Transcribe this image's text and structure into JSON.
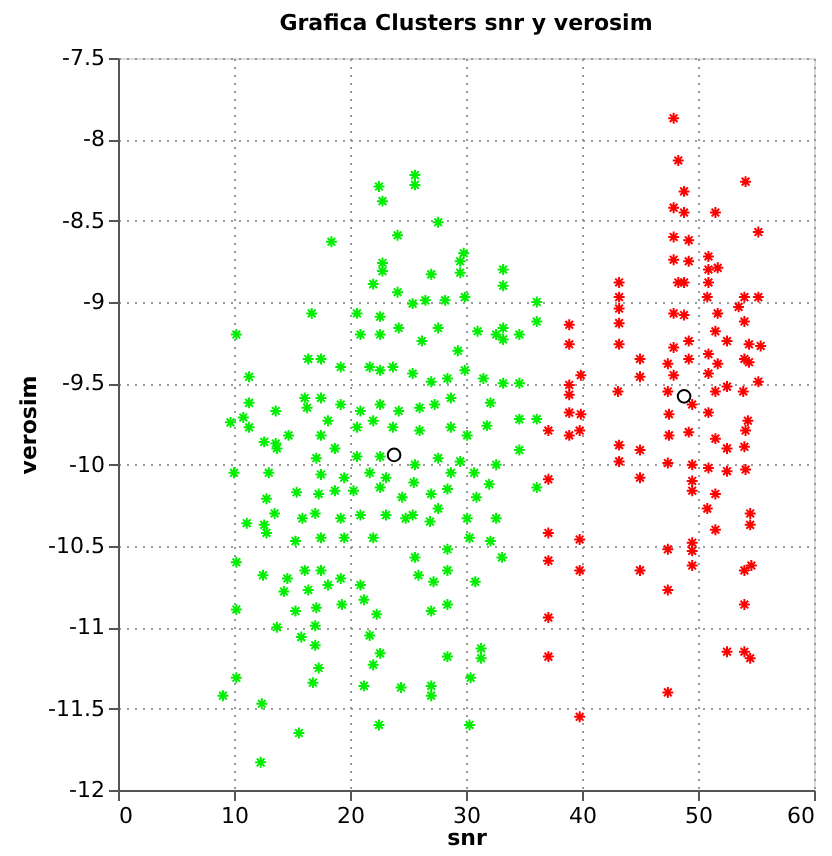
{
  "chart_data": {
    "type": "scatter",
    "title": "Grafica Clusters snr y verosim",
    "xlabel": "snr",
    "ylabel": "verosim",
    "xlim": [
      0,
      60
    ],
    "xticks": [
      0,
      10,
      20,
      30,
      40,
      50,
      60
    ],
    "ylim": [
      -12,
      -7.5
    ],
    "yticks": [
      -12,
      -11.5,
      -11,
      -10.5,
      -10,
      -9.5,
      -9,
      -8.5,
      -8,
      -7.5
    ],
    "grid": true,
    "series": [
      {
        "color": "#00ee00",
        "marker": "cross",
        "x": [
          12.3,
          15.6,
          22.5,
          30.3,
          9.05,
          10.2,
          12.4,
          16.8,
          21.2,
          24.4,
          27.0,
          27.0,
          30.4,
          28.4,
          31.3,
          31.3,
          17.3,
          22.0,
          22.6,
          17.0,
          15.8,
          13.7,
          17.0,
          21.7,
          10.2,
          15.3,
          17.1,
          19.3,
          21.2,
          22.3,
          27.0,
          28.4,
          14.3,
          16.4,
          18.1,
          12.5,
          14.6,
          16.1,
          17.5,
          19.2,
          20.9,
          25.6,
          25.9,
          27.2,
          28.4,
          30.8,
          33.1,
          10.2,
          15.3,
          17.5,
          19.5,
          22.0,
          24.8,
          26.9,
          28.4,
          30.3,
          32.1,
          11.1,
          12.6,
          12.8,
          15.9,
          17.0,
          19.2,
          20.9,
          23.1,
          25.4,
          27.6,
          30.1,
          32.6,
          13.5,
          12.8,
          15.4,
          17.3,
          18.7,
          20.3,
          22.6,
          24.5,
          27.0,
          28.4,
          30.9,
          32.0,
          13.0,
          10.0,
          17.5,
          19.5,
          21.7,
          23.1,
          25.5,
          28.7,
          30.7,
          32.6,
          17.1,
          18.7,
          20.6,
          22.6,
          25.6,
          27.6,
          29.5,
          13.6,
          13.7,
          12.6,
          11.3,
          9.7,
          14.7,
          17.5,
          18.1,
          20.6,
          22.0,
          23.7,
          26.0,
          28.7,
          30.1,
          31.8,
          10.8,
          11.3,
          13.6,
          16.1,
          16.3,
          17.5,
          19.2,
          20.9,
          22.6,
          24.2,
          26.0,
          27.3,
          28.7,
          32.1,
          11.3,
          17.5,
          19.2,
          21.7,
          22.6,
          23.7,
          25.4,
          27.0,
          28.4,
          29.9,
          31.5,
          16.4,
          10.2,
          20.9,
          22.6,
          24.2,
          26.2,
          27.6,
          29.3,
          31.0,
          32.6,
          16.7,
          20.6,
          22.6,
          25.4,
          26.5,
          28.2,
          29.9,
          22.0,
          24.1,
          22.8,
          27.0,
          29.5,
          22.8,
          29.5,
          29.8,
          18.4,
          24.1,
          27.6,
          22.8,
          22.5,
          25.6,
          25.6,
          33.2,
          33.2,
          36.1,
          36.1,
          33.2,
          33.2,
          34.6,
          33.2,
          34.6,
          34.6,
          36.1,
          34.6,
          36.1
        ],
        "values": [
          -11.83,
          -11.65,
          -11.6,
          -11.6,
          -11.42,
          -11.31,
          -11.47,
          -11.34,
          -11.36,
          -11.37,
          -11.36,
          -11.42,
          -11.31,
          -11.18,
          -11.13,
          -11.19,
          -11.25,
          -11.23,
          -11.16,
          -11.11,
          -11.06,
          -11.0,
          -10.99,
          -11.05,
          -10.89,
          -10.9,
          -10.88,
          -10.86,
          -10.83,
          -10.92,
          -10.9,
          -10.86,
          -10.78,
          -10.77,
          -10.74,
          -10.68,
          -10.7,
          -10.65,
          -10.65,
          -10.7,
          -10.74,
          -10.57,
          -10.68,
          -10.72,
          -10.65,
          -10.72,
          -10.57,
          -10.6,
          -10.47,
          -10.45,
          -10.45,
          -10.45,
          -10.33,
          -10.35,
          -10.52,
          -10.45,
          -10.47,
          -10.36,
          -10.37,
          -10.42,
          -10.33,
          -10.3,
          -10.33,
          -10.31,
          -10.31,
          -10.31,
          -10.27,
          -10.33,
          -10.33,
          -10.3,
          -10.21,
          -10.17,
          -10.18,
          -10.16,
          -10.16,
          -10.14,
          -10.2,
          -10.18,
          -10.15,
          -10.2,
          -10.12,
          -10.05,
          -10.05,
          -10.06,
          -10.08,
          -10.05,
          -10.08,
          -10.11,
          -10.05,
          -10.05,
          -10.0,
          -9.96,
          -9.9,
          -9.95,
          -9.95,
          -10.0,
          -9.96,
          -9.98,
          -9.87,
          -9.9,
          -9.86,
          -9.77,
          -9.74,
          -9.82,
          -9.82,
          -9.73,
          -9.77,
          -9.73,
          -9.77,
          -9.79,
          -9.77,
          -9.82,
          -9.76,
          -9.71,
          -9.62,
          -9.67,
          -9.59,
          -9.65,
          -9.59,
          -9.63,
          -9.67,
          -9.63,
          -9.67,
          -9.65,
          -9.63,
          -9.59,
          -9.62,
          -9.46,
          -9.35,
          -9.4,
          -9.4,
          -9.42,
          -9.4,
          -9.44,
          -9.49,
          -9.47,
          -9.42,
          -9.47,
          -9.35,
          -9.2,
          -9.2,
          -9.2,
          -9.16,
          -9.24,
          -9.16,
          -9.3,
          -9.18,
          -9.2,
          -9.07,
          -9.07,
          -9.09,
          -9.01,
          -8.99,
          -8.99,
          -8.97,
          -8.89,
          -8.94,
          -8.81,
          -8.83,
          -8.82,
          -8.76,
          -8.75,
          -8.7,
          -8.63,
          -8.59,
          -8.51,
          -8.38,
          -8.29,
          -8.28,
          -8.22,
          -8.8,
          -8.9,
          -9.0,
          -9.12,
          -9.16,
          -9.23,
          -9.2,
          -9.5,
          -9.5,
          -9.72,
          -9.72,
          -9.91,
          -10.14
        ]
      },
      {
        "color": "#ff0000",
        "marker": "cross",
        "x": [
          47.9,
          48.3,
          54.1,
          48.8,
          47.9,
          48.8,
          51.5,
          55.2,
          47.9,
          49.2,
          47.9,
          49.2,
          50.9,
          51.7,
          50.9,
          48.3,
          48.8,
          50.9,
          43.2,
          43.2,
          50.8,
          54.0,
          55.2,
          43.2,
          47.9,
          48.8,
          51.7,
          53.5,
          38.9,
          43.2,
          54.0,
          51.5,
          38.9,
          43.2,
          52.5,
          54.4,
          55.4,
          49.2,
          47.9,
          50.9,
          45.0,
          49.2,
          54.0,
          47.4,
          51.7,
          54.4,
          45.0,
          39.9,
          50.9,
          47.9,
          38.9,
          55.2,
          52.5,
          53.9,
          43.1,
          38.9,
          47.4,
          49.5,
          51.5,
          50.9,
          38.9,
          39.9,
          47.5,
          54.3,
          37.1,
          39.8,
          38.9,
          49.2,
          47.5,
          51.5,
          54.1,
          52.5,
          43.2,
          45.0,
          54.0,
          43.2,
          47.4,
          49.5,
          50.9,
          52.5,
          54.1,
          37.1,
          45.0,
          49.5,
          49.5,
          51.5,
          50.8,
          54.5,
          54.5,
          37.1,
          51.5,
          39.8,
          49.5,
          47.4,
          49.5,
          37.1,
          39.8,
          45.0,
          49.5,
          54.0,
          54.6,
          47.4,
          54.0,
          37.1,
          52.5,
          54.0,
          54.5,
          37.1,
          47.4,
          39.8
        ],
        "values": [
          -7.87,
          -8.13,
          -8.26,
          -8.32,
          -8.42,
          -8.45,
          -8.45,
          -8.57,
          -8.6,
          -8.62,
          -8.74,
          -8.75,
          -8.72,
          -8.79,
          -8.8,
          -8.88,
          -8.88,
          -8.88,
          -8.88,
          -8.97,
          -8.97,
          -8.97,
          -8.97,
          -9.04,
          -9.07,
          -9.08,
          -9.07,
          -9.03,
          -9.14,
          -9.13,
          -9.12,
          -9.18,
          -9.26,
          -9.26,
          -9.24,
          -9.26,
          -9.27,
          -9.24,
          -9.28,
          -9.32,
          -9.35,
          -9.35,
          -9.35,
          -9.38,
          -9.38,
          -9.37,
          -9.46,
          -9.45,
          -9.44,
          -9.45,
          -9.51,
          -9.49,
          -9.52,
          -9.55,
          -9.55,
          -9.57,
          -9.55,
          -9.63,
          -9.55,
          -9.68,
          -9.68,
          -9.69,
          -9.69,
          -9.73,
          -9.79,
          -9.79,
          -9.82,
          -9.8,
          -9.82,
          -9.84,
          -9.79,
          -9.9,
          -9.88,
          -9.91,
          -9.89,
          -9.98,
          -9.99,
          -10.0,
          -10.02,
          -10.04,
          -10.03,
          -10.09,
          -10.08,
          -10.1,
          -10.16,
          -10.18,
          -10.27,
          -10.3,
          -10.37,
          -10.42,
          -10.4,
          -10.46,
          -10.48,
          -10.52,
          -10.53,
          -10.59,
          -10.65,
          -10.65,
          -10.62,
          -10.65,
          -10.62,
          -10.77,
          -10.86,
          -10.94,
          -11.15,
          -11.15,
          -11.19,
          -11.18,
          -11.4,
          -11.55
        ]
      },
      {
        "color": "#000000",
        "marker": "circle",
        "x": [
          23.8,
          48.8
        ],
        "values": [
          -9.94,
          -9.58
        ]
      }
    ]
  }
}
